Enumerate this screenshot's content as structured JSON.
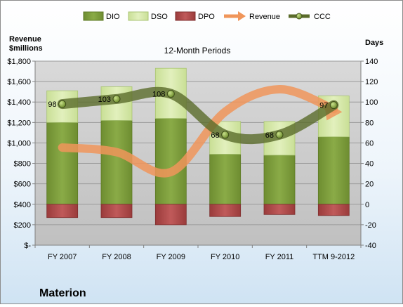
{
  "company": "Materion",
  "chart_data": {
    "type": "bar",
    "title": "12-Month Periods",
    "categories": [
      "FY 2007",
      "FY 2008",
      "FY 2009",
      "FY 2010",
      "FY 2011",
      "TTM 9-2012"
    ],
    "left_axis": {
      "label_line1": "Revenue",
      "label_line2": "$millions",
      "range": [
        0,
        1800
      ],
      "ticks": [
        0,
        200,
        400,
        600,
        800,
        1000,
        1200,
        1400,
        1600,
        1800
      ],
      "tick_labels": [
        "$-",
        "$200",
        "$400",
        "$600",
        "$800",
        "$1,000",
        "$1,200",
        "$1,400",
        "$1,600",
        "$1,800"
      ]
    },
    "right_axis": {
      "label": "Days",
      "range": [
        -40,
        140
      ],
      "ticks": [
        -40,
        -20,
        0,
        20,
        40,
        60,
        80,
        100,
        120,
        140
      ],
      "tick_labels": [
        "-40",
        "-20",
        "0",
        "20",
        "40",
        "60",
        "80",
        "100",
        "120",
        "140"
      ]
    },
    "grid": true,
    "legend_position": "top",
    "series": [
      {
        "name": "DIO",
        "axis": "right",
        "kind": "stacked-bar",
        "color": "#7a9a3a",
        "values": [
          80,
          82,
          84,
          49,
          48,
          66
        ]
      },
      {
        "name": "DSO",
        "axis": "right",
        "kind": "stacked-bar",
        "color": "#d5e8a8",
        "values": [
          31,
          33,
          49,
          32,
          33,
          40
        ]
      },
      {
        "name": "DPO",
        "axis": "right",
        "kind": "negative-bar",
        "color": "#b04848",
        "values": [
          -13,
          -13,
          -20,
          -12,
          -10,
          -11
        ]
      },
      {
        "name": "Revenue",
        "axis": "left",
        "kind": "smooth-line",
        "color": "#f0955a",
        "values": [
          955,
          910,
          715,
          1305,
          1525,
          1330
        ]
      },
      {
        "name": "CCC",
        "axis": "right",
        "kind": "smooth-line",
        "color": "#5a6b2a",
        "values": [
          98,
          103,
          108,
          68,
          68,
          97
        ]
      }
    ],
    "ccc_labels": [
      "98",
      "103",
      "108",
      "68",
      "68",
      "97"
    ]
  }
}
